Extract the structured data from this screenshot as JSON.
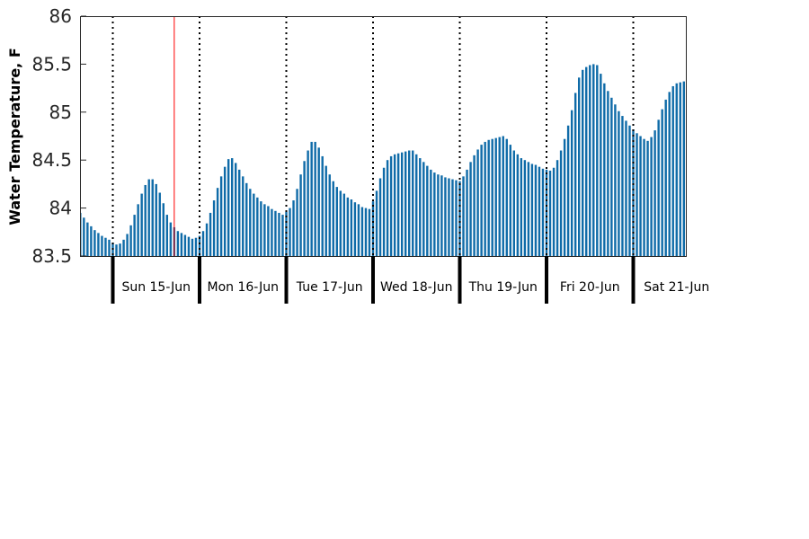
{
  "chart_data": {
    "type": "bar",
    "title": "",
    "xlabel": "",
    "ylabel": "Water Temperature, F",
    "ylim": [
      83.5,
      86
    ],
    "yticks": [
      "83.5",
      "84",
      "84.5",
      "85",
      "85.5",
      "86"
    ],
    "days": [
      "Sun 15-Jun",
      "Mon 16-Jun",
      "Tue 17-Jun",
      "Wed 18-Jun",
      "Thu 19-Jun",
      "Fri 20-Jun",
      "Sat 21-Jun"
    ],
    "start_hours_before_first_day": 9,
    "interval_hours": 1,
    "marker_hours_after_first_day": 17,
    "grid": false,
    "values": [
      83.95,
      83.9,
      83.85,
      83.81,
      83.77,
      83.74,
      83.71,
      83.69,
      83.67,
      83.64,
      83.62,
      83.63,
      83.67,
      83.73,
      83.82,
      83.93,
      84.04,
      84.15,
      84.24,
      84.3,
      84.3,
      84.25,
      84.16,
      84.05,
      83.93,
      83.85,
      83.8,
      83.76,
      83.74,
      83.72,
      83.7,
      83.68,
      83.69,
      83.71,
      83.76,
      83.84,
      83.95,
      84.08,
      84.21,
      84.33,
      84.43,
      84.51,
      84.52,
      84.47,
      84.4,
      84.33,
      84.26,
      84.2,
      84.15,
      84.11,
      84.07,
      84.04,
      84.02,
      83.99,
      83.97,
      83.95,
      83.93,
      83.96,
      84.0,
      84.08,
      84.2,
      84.35,
      84.49,
      84.6,
      84.69,
      84.69,
      84.63,
      84.54,
      84.44,
      84.35,
      84.28,
      84.22,
      84.18,
      84.15,
      84.11,
      84.09,
      84.06,
      84.04,
      84.01,
      84.0,
      83.99,
      84.07,
      84.18,
      84.31,
      84.42,
      84.5,
      84.54,
      84.56,
      84.57,
      84.58,
      84.59,
      84.6,
      84.6,
      84.56,
      84.52,
      84.48,
      84.44,
      84.4,
      84.37,
      84.35,
      84.34,
      84.32,
      84.31,
      84.3,
      84.29,
      84.28,
      84.33,
      84.4,
      84.48,
      84.55,
      84.61,
      84.66,
      84.69,
      84.71,
      84.72,
      84.73,
      84.74,
      84.75,
      84.72,
      84.66,
      84.6,
      84.56,
      84.52,
      84.5,
      84.48,
      84.46,
      84.45,
      84.43,
      84.41,
      84.4,
      84.39,
      84.42,
      84.5,
      84.6,
      84.72,
      84.86,
      85.02,
      85.2,
      85.36,
      85.44,
      85.47,
      85.49,
      85.5,
      85.49,
      85.4,
      85.3,
      85.22,
      85.15,
      85.08,
      85.01,
      84.96,
      84.91,
      84.86,
      84.82,
      84.78,
      84.75,
      84.72,
      84.7,
      84.74,
      84.81,
      84.92,
      85.03,
      85.13,
      85.21,
      85.27,
      85.3,
      85.31,
      85.32,
      85.33,
      85.34,
      85.35,
      85.36
    ]
  }
}
